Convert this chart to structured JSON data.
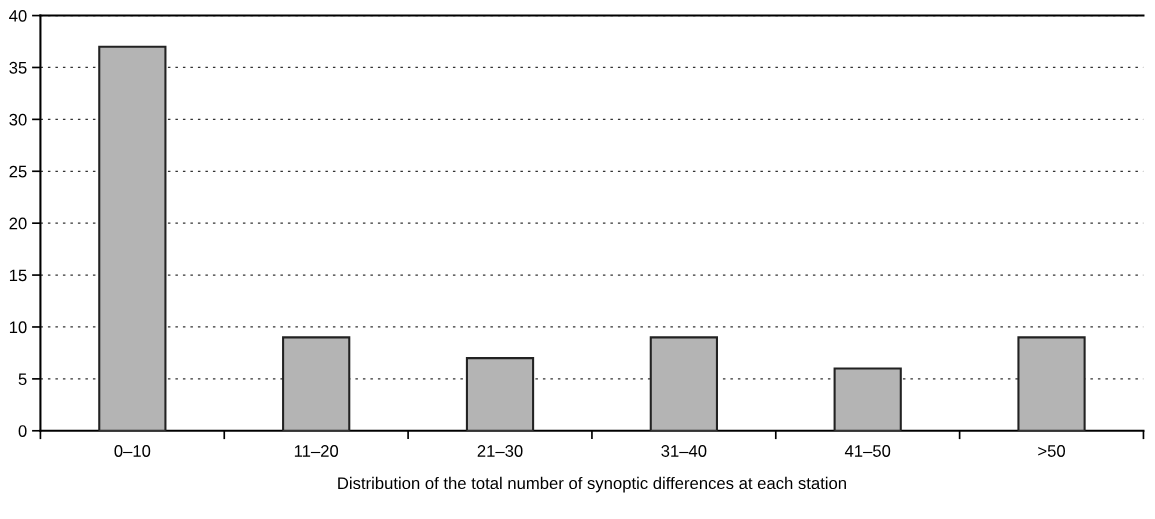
{
  "chart_data": {
    "type": "bar",
    "xlabel": "Distribution of the total number of synoptic differences at each station",
    "categories": [
      "0–10",
      "11–20",
      "21–30",
      "31–40",
      "41–50",
      ">50"
    ],
    "values": [
      37,
      9,
      7,
      9,
      6,
      9
    ],
    "color": "#b4b4b4",
    "ylim": [
      0,
      40
    ],
    "yticks": [
      0,
      5,
      10,
      15,
      20,
      25,
      30,
      35,
      40
    ],
    "grid": "y",
    "legend": false
  }
}
